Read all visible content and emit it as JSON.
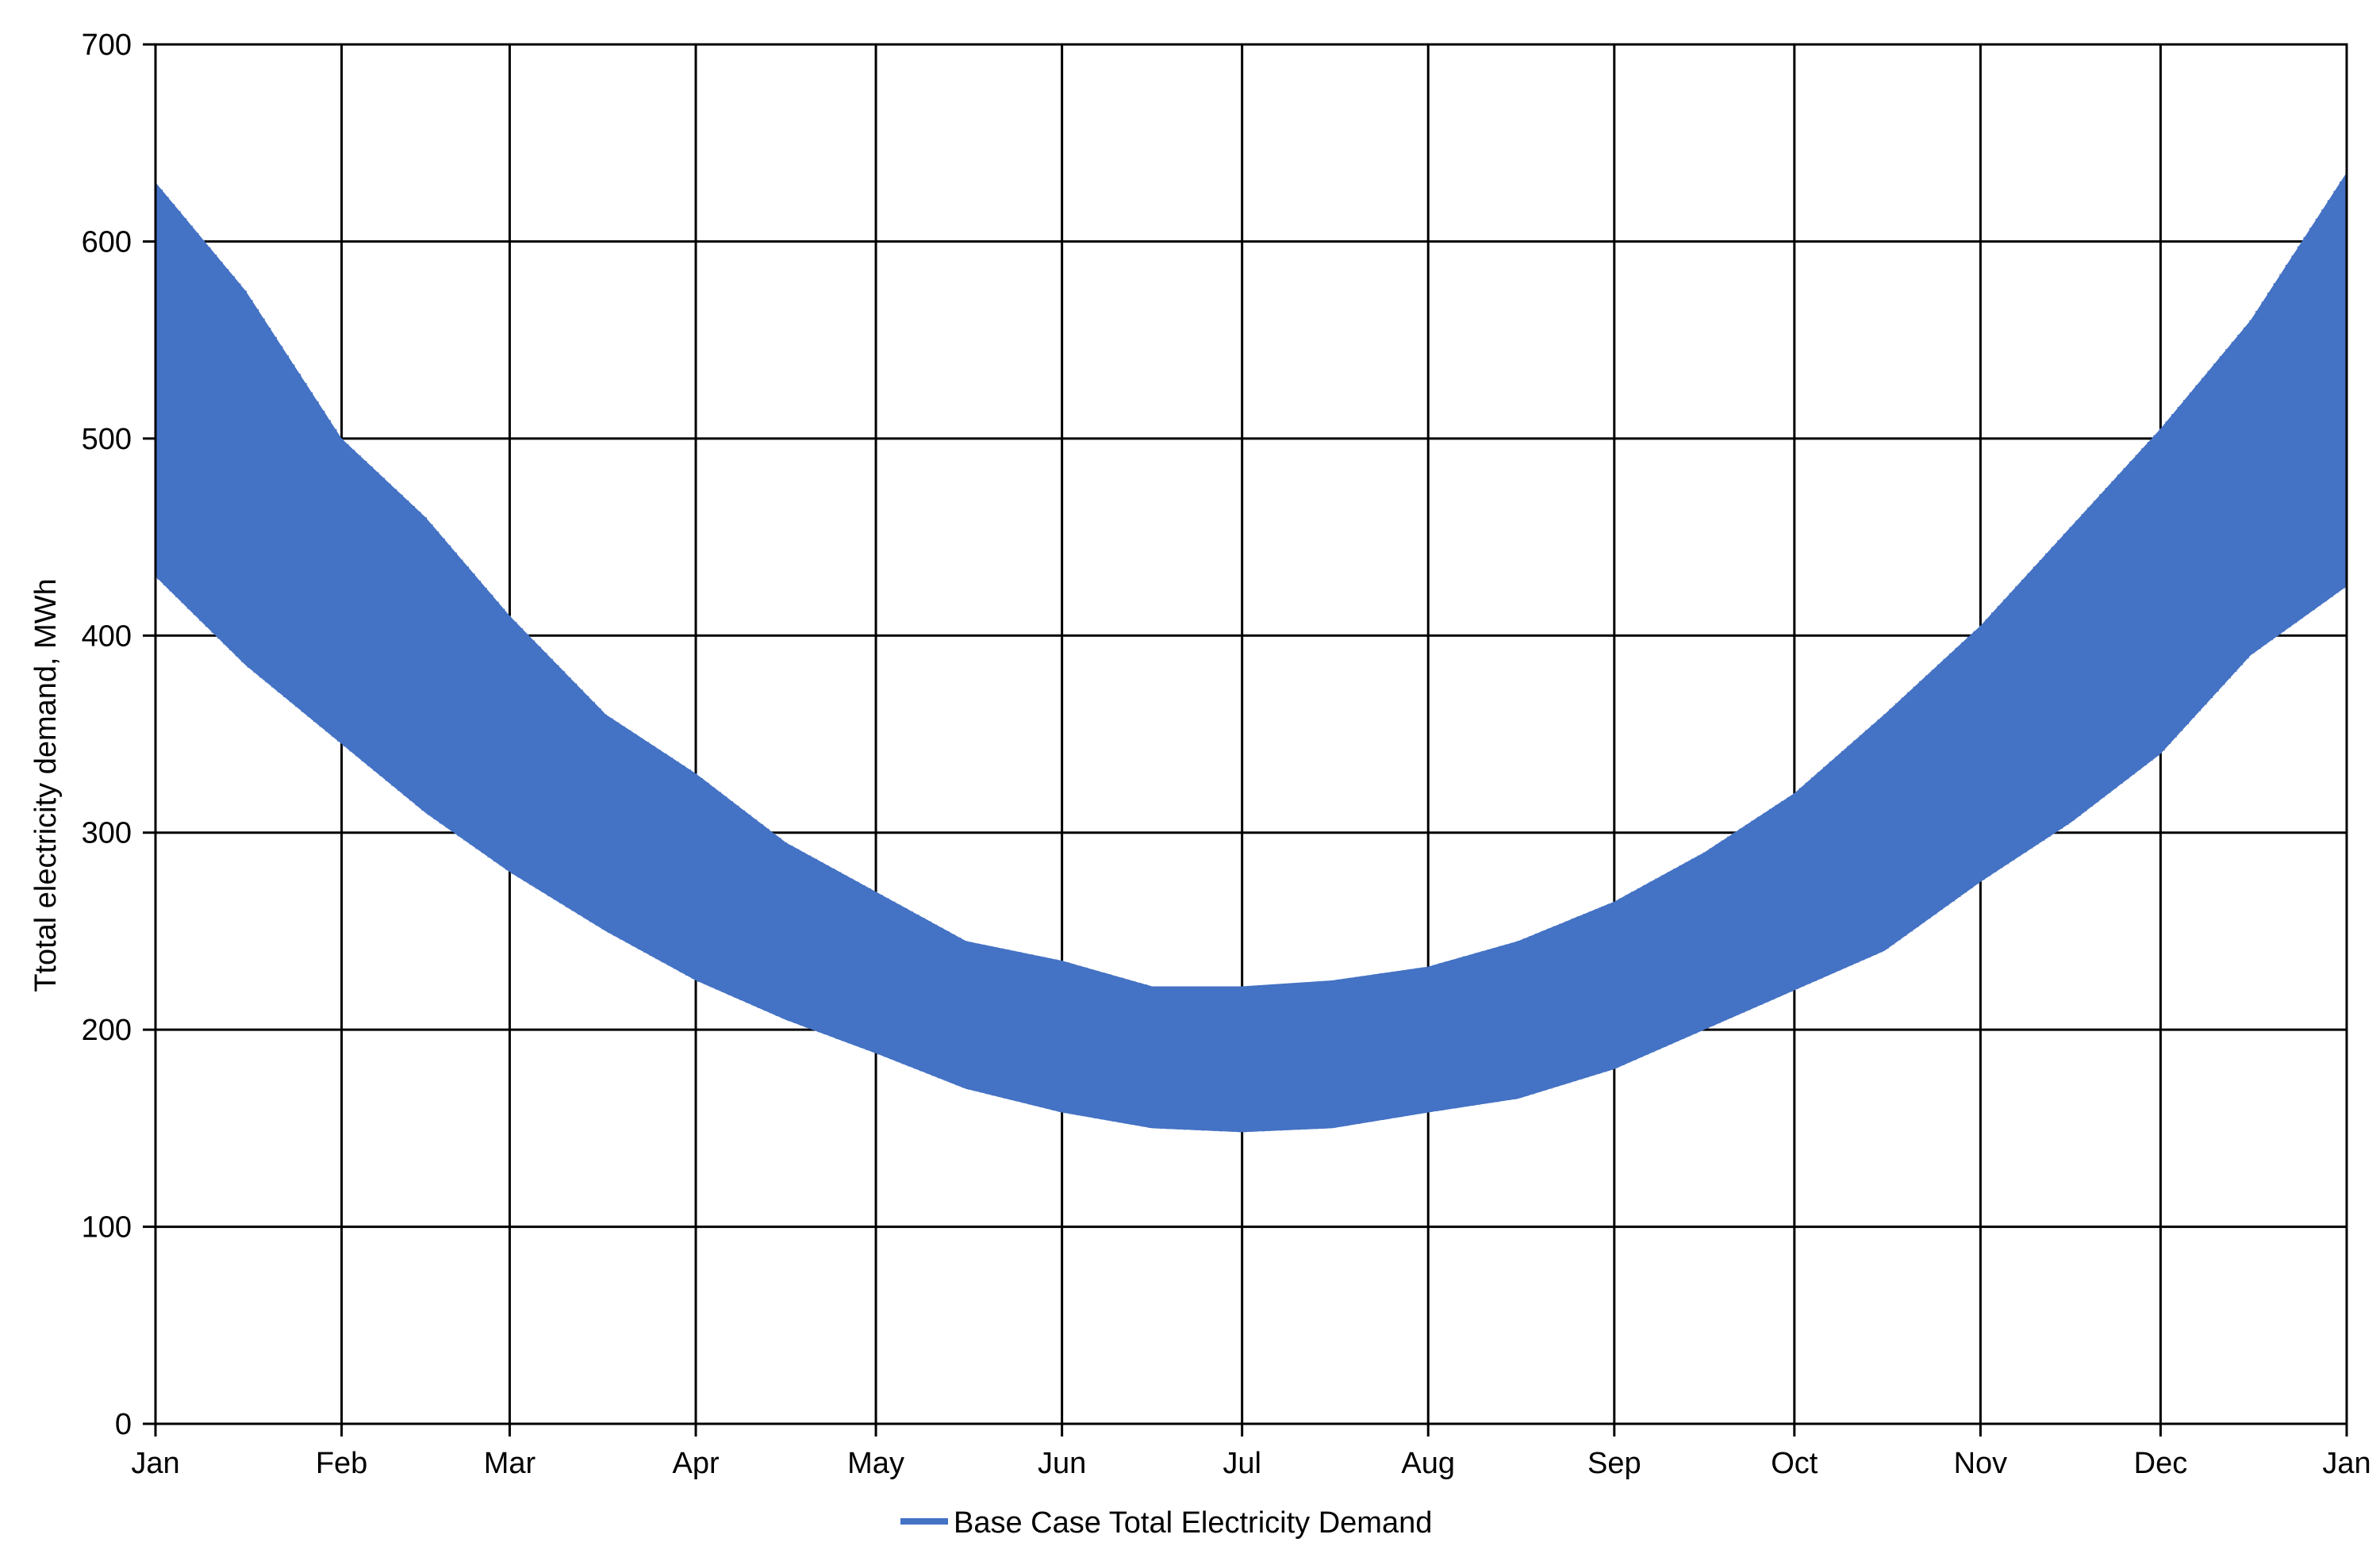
{
  "chart_data": {
    "type": "line",
    "title": "",
    "xlabel": "",
    "ylabel": "Ttotal electricity demand, MWh",
    "ylim": [
      0,
      700
    ],
    "yticks": [
      0,
      100,
      200,
      300,
      400,
      500,
      600,
      700
    ],
    "x_tick_labels": [
      "Jan",
      "Feb",
      "Mar",
      "Apr",
      "May",
      "Jun",
      "Jul",
      "Aug",
      "Sep",
      "Oct",
      "Nov",
      "Dec",
      "Jan"
    ],
    "x_tick_days": [
      0,
      31,
      59,
      90,
      120,
      151,
      181,
      212,
      243,
      273,
      304,
      334,
      365
    ],
    "grid": true,
    "legend_position": "bottom-center",
    "series": [
      {
        "name": "Base Case Total Electricity Demand",
        "color": "#4472C4",
        "envelope_days": [
          0,
          15,
          31,
          45,
          59,
          75,
          90,
          105,
          120,
          135,
          151,
          166,
          181,
          196,
          212,
          227,
          243,
          258,
          273,
          288,
          304,
          319,
          334,
          349,
          365
        ],
        "daily_max": [
          630,
          575,
          500,
          460,
          410,
          360,
          330,
          295,
          270,
          245,
          235,
          222,
          222,
          225,
          232,
          245,
          265,
          290,
          320,
          360,
          405,
          455,
          505,
          560,
          635
        ],
        "daily_min": [
          430,
          385,
          345,
          310,
          280,
          250,
          225,
          205,
          188,
          170,
          158,
          150,
          148,
          150,
          158,
          165,
          180,
          200,
          220,
          240,
          275,
          305,
          340,
          390,
          425
        ]
      }
    ]
  }
}
